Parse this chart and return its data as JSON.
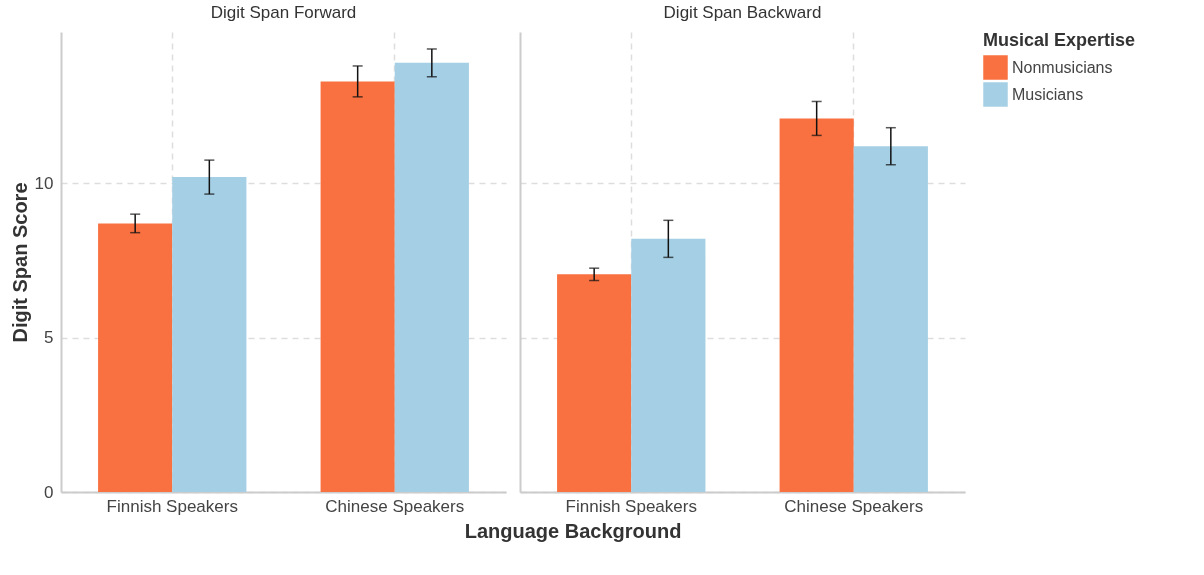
{
  "chart_data": [
    {
      "type": "bar",
      "title": "Digit Span Forward",
      "ylabel": "Digit Span Score",
      "legend_title": "Musical Expertise",
      "xlabel": "Language Background",
      "categories": [
        "Finnish Speakers",
        "Chinese Speakers"
      ],
      "series": [
        {
          "name": "Nonmusicians",
          "color": "#f97140",
          "values": [
            8.7,
            13.3
          ],
          "errors": [
            0.3,
            0.5
          ]
        },
        {
          "name": "Musicians",
          "color": "#a5cfe4",
          "values": [
            10.2,
            13.9
          ],
          "errors": [
            0.55,
            0.45
          ]
        }
      ],
      "ylim": [
        0,
        14.9
      ],
      "yticks": [
        0,
        5,
        10
      ],
      "grid": true,
      "legend": "right"
    },
    {
      "type": "bar",
      "title": "Digit Span Backward",
      "categories": [
        "Finnish Speakers",
        "Chinese Speakers"
      ],
      "series": [
        {
          "name": "Nonmusicians",
          "color": "#f97140",
          "values": [
            7.05,
            12.1
          ],
          "errors": [
            0.2,
            0.55
          ]
        },
        {
          "name": "Musicians",
          "color": "#a5cfe4",
          "values": [
            8.2,
            11.2
          ],
          "errors": [
            0.6,
            0.6
          ]
        }
      ],
      "ylim": [
        0,
        14.9
      ],
      "yticks": [
        0,
        5,
        10
      ],
      "grid": true,
      "legend": "right",
      "tick_labels": "x"
    }
  ]
}
